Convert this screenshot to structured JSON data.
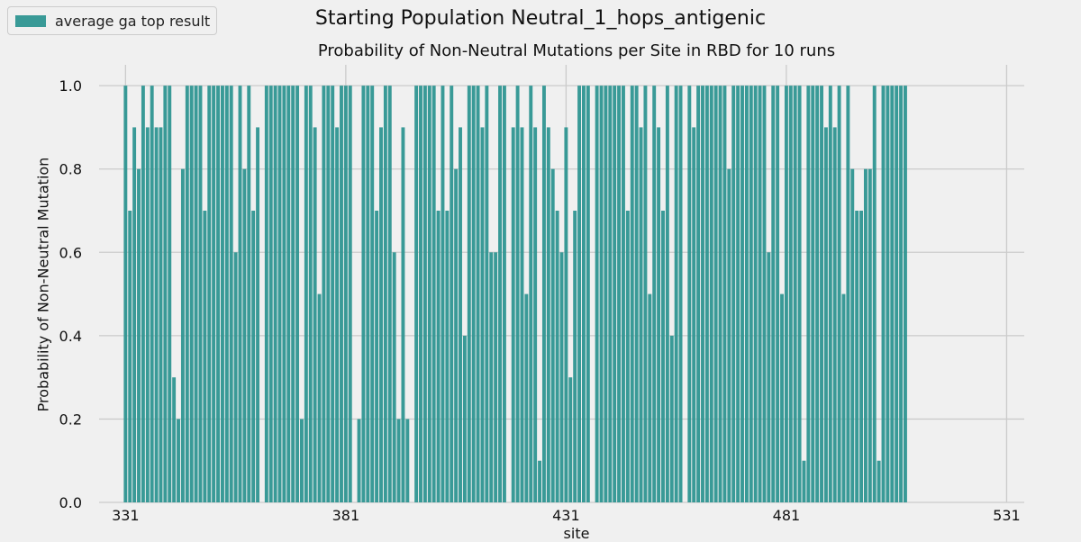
{
  "chart_data": {
    "type": "bar",
    "suptitle": "Starting Population Neutral_1_hops_antigenic",
    "title": "Probability of Non-Neutral Mutations per Site in RBD for 10 runs",
    "xlabel": "site",
    "ylabel": "Probability of Non-Neutral Mutation",
    "xlim": [
      325,
      535
    ],
    "ylim": [
      0,
      1.05
    ],
    "xticks": [
      331,
      381,
      431,
      481,
      531
    ],
    "yticks": [
      0.0,
      0.2,
      0.4,
      0.6,
      0.8,
      1.0
    ],
    "ytick_labels": [
      "0.0",
      "0.2",
      "0.4",
      "0.6",
      "0.8",
      "1.0"
    ],
    "grid": true,
    "legend_position": "top-left",
    "color": "#2e9591",
    "series": [
      {
        "name": "average ga top result",
        "x_start": 331,
        "values": [
          1.0,
          0.7,
          0.9,
          0.8,
          1.0,
          0.9,
          1.0,
          0.9,
          0.9,
          1.0,
          1.0,
          0.3,
          0.2,
          0.8,
          1.0,
          1.0,
          1.0,
          1.0,
          0.7,
          1.0,
          1.0,
          1.0,
          1.0,
          1.0,
          1.0,
          0.6,
          1.0,
          0.8,
          1.0,
          0.7,
          0.9,
          0.0,
          1.0,
          1.0,
          1.0,
          1.0,
          1.0,
          1.0,
          1.0,
          1.0,
          0.2,
          1.0,
          1.0,
          0.9,
          0.5,
          1.0,
          1.0,
          1.0,
          0.9,
          1.0,
          1.0,
          1.0,
          0.0,
          0.2,
          1.0,
          1.0,
          1.0,
          0.7,
          0.9,
          1.0,
          1.0,
          0.6,
          0.2,
          0.9,
          0.2,
          0.0,
          1.0,
          1.0,
          1.0,
          1.0,
          1.0,
          0.7,
          1.0,
          0.7,
          1.0,
          0.8,
          0.9,
          0.4,
          1.0,
          1.0,
          1.0,
          0.9,
          1.0,
          0.6,
          0.6,
          1.0,
          1.0,
          0.0,
          0.9,
          1.0,
          0.9,
          0.5,
          1.0,
          0.9,
          0.1,
          1.0,
          0.9,
          0.8,
          0.7,
          0.6,
          0.9,
          0.3,
          0.7,
          1.0,
          1.0,
          1.0,
          0.0,
          1.0,
          1.0,
          1.0,
          1.0,
          1.0,
          1.0,
          1.0,
          0.7,
          1.0,
          1.0,
          0.9,
          1.0,
          0.5,
          1.0,
          0.9,
          0.7,
          1.0,
          0.4,
          1.0,
          1.0,
          0.0,
          1.0,
          0.9,
          1.0,
          1.0,
          1.0,
          1.0,
          1.0,
          1.0,
          1.0,
          0.8,
          1.0,
          1.0,
          1.0,
          1.0,
          1.0,
          1.0,
          1.0,
          1.0,
          0.6,
          1.0,
          1.0,
          0.5,
          1.0,
          1.0,
          1.0,
          1.0,
          0.1,
          1.0,
          1.0,
          1.0,
          1.0,
          0.9,
          1.0,
          0.9,
          1.0,
          0.5,
          1.0,
          0.8,
          0.7,
          0.7,
          0.8,
          0.8,
          1.0,
          0.1,
          1.0,
          1.0,
          1.0,
          1.0,
          1.0,
          1.0
        ]
      }
    ]
  }
}
